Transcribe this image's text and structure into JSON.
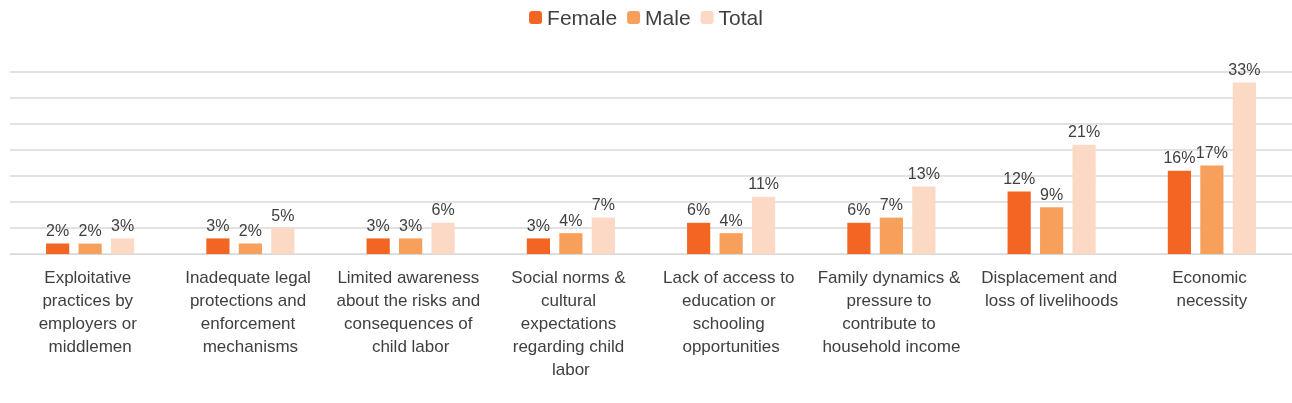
{
  "chart_data": {
    "type": "bar",
    "categories": [
      "Exploitative practices by employers or middlemen",
      "Inadequate legal protections and enforcement mechanisms",
      "Limited awareness about the risks and consequences of child labor",
      "Social norms & cultural expectations regarding child labor",
      "Lack of access to education or schooling opportunities",
      "Family dynamics & pressure to contribute to household income",
      "Displacement and loss of livelihoods",
      "Economic necessity"
    ],
    "series": [
      {
        "name": "Female",
        "color": "#f26522",
        "values": [
          2,
          3,
          3,
          3,
          6,
          6,
          12,
          16
        ],
        "value_labels": [
          "2%",
          "3%",
          "3%",
          "3%",
          "6%",
          "6%",
          "12%",
          "16%"
        ]
      },
      {
        "name": "Male",
        "color": "#f7a05b",
        "values": [
          2,
          2,
          3,
          4,
          4,
          7,
          9,
          17
        ],
        "value_labels": [
          "2%",
          "2%",
          "3%",
          "4%",
          "4%",
          "7%",
          "9%",
          "17%"
        ]
      },
      {
        "name": "Total",
        "color": "#fbd9c5",
        "values": [
          3,
          5,
          6,
          7,
          11,
          13,
          21,
          33
        ],
        "value_labels": [
          "3%",
          "5%",
          "6%",
          "7%",
          "11%",
          "13%",
          "21%",
          "33%"
        ]
      }
    ],
    "ylim": [
      0,
      35
    ],
    "yticks": [
      0,
      5,
      10,
      15,
      20,
      25,
      30,
      35
    ],
    "tick_labels": "x",
    "grid": "y",
    "legend": "top"
  }
}
